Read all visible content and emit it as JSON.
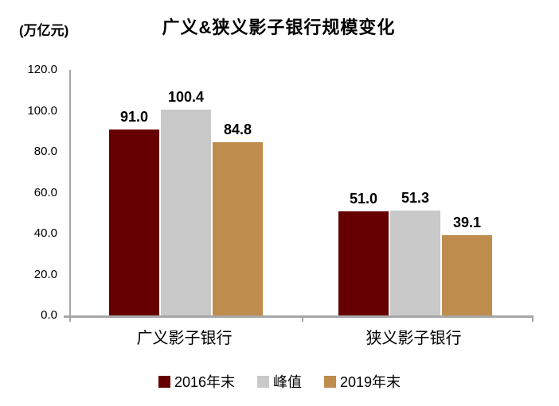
{
  "chart_data": {
    "type": "bar",
    "title": "广义&狭义影子银行规模变化",
    "unit": "(万亿元)",
    "categories": [
      "广义影子银行",
      "狭义影子银行"
    ],
    "series": [
      {
        "name": "2016年末",
        "color": "#660000",
        "values": [
          91.0,
          51.0
        ],
        "labels": [
          "91.0",
          "51.0"
        ]
      },
      {
        "name": "峰值",
        "color": "#C9C9C9",
        "values": [
          100.4,
          51.3
        ],
        "labels": [
          "100.4",
          "51.3"
        ]
      },
      {
        "name": "2019年末",
        "color": "#BE8C4D",
        "values": [
          84.8,
          39.1
        ],
        "labels": [
          "84.8",
          "39.1"
        ]
      }
    ],
    "ylim": [
      0,
      120
    ],
    "ytick_labels": [
      "0.0",
      "20.0",
      "40.0",
      "60.0",
      "80.0",
      "100.0",
      "120.0"
    ],
    "grid": false,
    "legend_position": "bottom",
    "axis_color": "#A6A6A6",
    "text_color": "#000000"
  }
}
